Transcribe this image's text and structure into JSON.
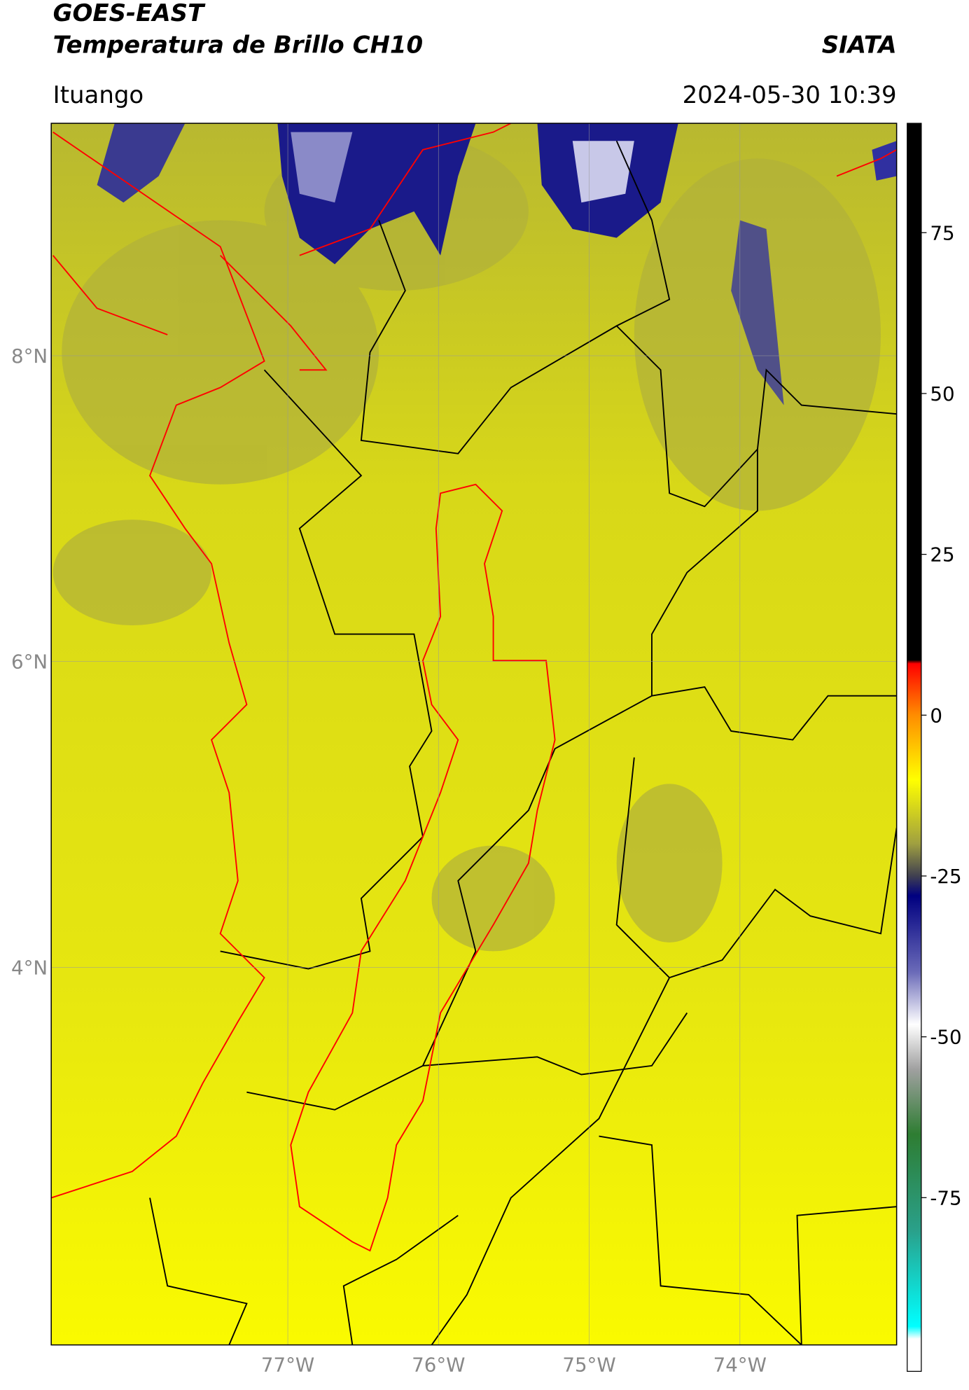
{
  "header": {
    "title": "GOES-EAST",
    "subtitle": "Temperatura de Brillo CH10",
    "brand": "SIATA",
    "location": "Ituango",
    "datetime": "2024-05-30 10:39"
  },
  "map": {
    "latlim": [
      1.53,
      9.52
    ],
    "lonlim": [
      -78.57,
      -72.96
    ],
    "lat_ticks": [
      {
        "value": 8,
        "label": "8°N"
      },
      {
        "value": 6,
        "label": "6°N"
      },
      {
        "value": 4,
        "label": "4°N"
      }
    ],
    "lon_ticks": [
      {
        "value": -77,
        "label": "77°W"
      },
      {
        "value": -76,
        "label": "76°W"
      },
      {
        "value": -75,
        "label": "75°W"
      },
      {
        "value": -74,
        "label": "74°W"
      }
    ],
    "grid": true
  },
  "colorbar": {
    "lim": [
      -102,
      92
    ],
    "ticks": [
      75,
      50,
      25,
      0,
      -25,
      -50,
      -75
    ]
  }
}
